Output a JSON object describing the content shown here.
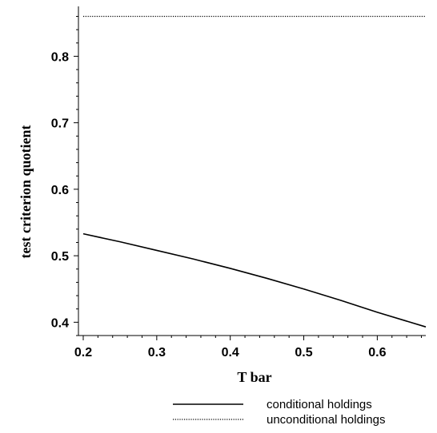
{
  "chart_data": {
    "type": "line",
    "title": "",
    "xlabel": "T bar",
    "ylabel": "test criterion quotient",
    "xlim": [
      0.2,
      0.666
    ],
    "ylim": [
      0.38,
      0.875
    ],
    "xticks": [
      0.2,
      0.3,
      0.4,
      0.5,
      0.6
    ],
    "xtick_labels": [
      "0.2",
      "0.3",
      "0.4",
      "0.5",
      "0.6"
    ],
    "yticks": [
      0.4,
      0.5,
      0.6,
      0.7,
      0.8
    ],
    "ytick_labels": [
      "0.4",
      "0.5",
      "0.6",
      "0.7",
      "0.8"
    ],
    "grid": false,
    "legend": "bottom",
    "series": [
      {
        "name": "conditional holdings",
        "style": "solid",
        "color": "#000000",
        "x": [
          0.2,
          0.25,
          0.3,
          0.35,
          0.4,
          0.45,
          0.5,
          0.55,
          0.6,
          0.666
        ],
        "y": [
          0.533,
          0.521,
          0.508,
          0.495,
          0.481,
          0.466,
          0.45,
          0.433,
          0.415,
          0.393
        ]
      },
      {
        "name": "unconditional holdings",
        "style": "dotted",
        "color": "#000000",
        "x": [
          0.2,
          0.666
        ],
        "y": [
          0.86,
          0.86
        ]
      }
    ]
  }
}
